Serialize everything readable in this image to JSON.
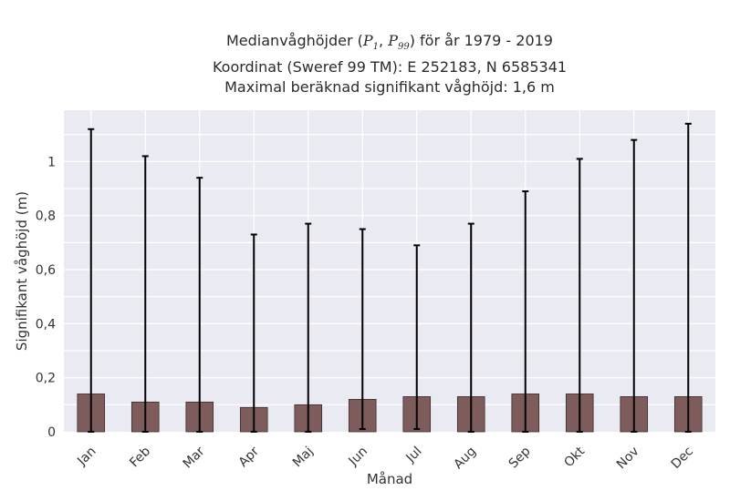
{
  "title": {
    "line1_prefix": "Medianvåghöjder (",
    "p1": "P",
    "p1_sub": "1",
    "sep": ", ",
    "p99": "P",
    "p99_sub": "99",
    "line1_suffix": ") för år 1979 - 2019",
    "line2": "Koordinat (Sweref 99 TM): E 252183, N 6585341",
    "line3": "Maximal beräknad signifikant våghöjd: 1,6 m"
  },
  "chart_data": {
    "type": "bar",
    "categories": [
      "Jan",
      "Feb",
      "Mar",
      "Apr",
      "Maj",
      "Jun",
      "Jul",
      "Aug",
      "Sep",
      "Okt",
      "Nov",
      "Dec"
    ],
    "values": [
      0.14,
      0.11,
      0.11,
      0.09,
      0.1,
      0.12,
      0.13,
      0.13,
      0.14,
      0.14,
      0.13,
      0.13
    ],
    "error_low": [
      0.0,
      0.0,
      0.0,
      0.0,
      0.0,
      0.01,
      0.01,
      0.0,
      0.0,
      0.0,
      0.0,
      0.0
    ],
    "error_high": [
      1.12,
      1.02,
      0.94,
      0.73,
      0.77,
      0.75,
      0.69,
      0.77,
      0.89,
      1.01,
      1.08,
      1.14
    ],
    "xlabel": "Månad",
    "ylabel": "Signifikant våghöjd (m)",
    "ylim": [
      0,
      1.19
    ],
    "yticks": [
      0,
      0.2,
      0.4,
      0.6,
      0.8,
      1
    ],
    "ytick_labels": [
      "0",
      "0,2",
      "0,4",
      "0,6",
      "0,8",
      "1"
    ],
    "grid": true,
    "colors": {
      "bar": "#7f5c5c",
      "bar_edge": "#3a2a2a",
      "errorbar": "#000000",
      "plot_bg": "#eaeaf2",
      "grid": "#ffffff"
    }
  }
}
